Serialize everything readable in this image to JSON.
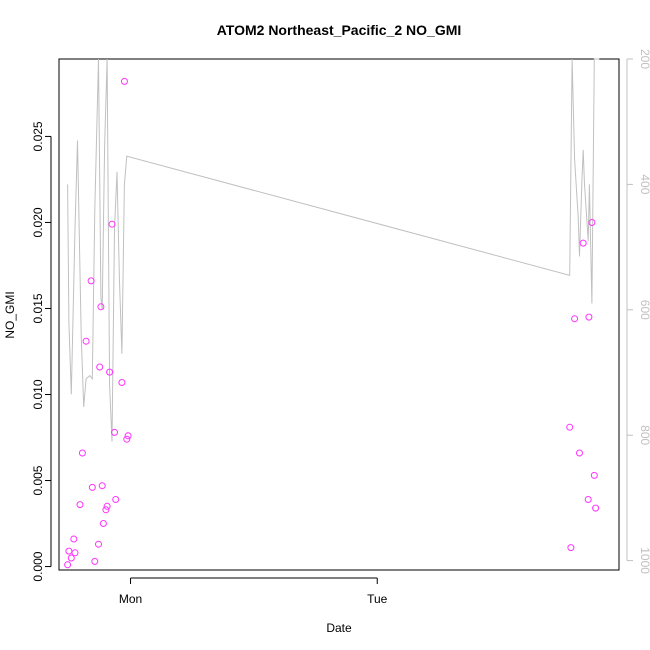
{
  "chart_data": {
    "type": "scatter",
    "title": "ATOM2 Northeast_Pacific_2 NO_GMI",
    "xlabel": "Date",
    "ylabel": "NO_GMI",
    "x_tick_labels": [
      "Mon",
      "Tue"
    ],
    "y_ticks": [
      0.0,
      0.005,
      0.01,
      0.015,
      0.02,
      0.025
    ],
    "y_tick_labels": [
      "0.000",
      "0.005",
      "0.010",
      "0.015",
      "0.020",
      "0.025"
    ],
    "ylim": [
      -0.0002,
      0.0295
    ],
    "xlim": [
      -0.29,
      1.98
    ],
    "y2_ticks": [
      200,
      400,
      600,
      800,
      1000
    ],
    "y2_tick_labels": [
      "200",
      "400",
      "600",
      "800",
      "1000"
    ],
    "y2lim": [
      1015,
      200
    ],
    "grid": false,
    "colors": {
      "points": "#ff33ff",
      "line": "#c0c0c0",
      "axis": "#000000",
      "secondary_axis": "#c0c0c0"
    },
    "series": [
      {
        "kind": "points",
        "axis": "left",
        "points": [
          [
            -0.255,
            0.0001
          ],
          [
            -0.25,
            0.0009
          ],
          [
            -0.24,
            0.0005
          ],
          [
            -0.23,
            0.0016
          ],
          [
            -0.225,
            0.0008
          ],
          [
            -0.205,
            0.0036
          ],
          [
            -0.195,
            0.0066
          ],
          [
            -0.18,
            0.0131
          ],
          [
            -0.16,
            0.0166
          ],
          [
            -0.155,
            0.0046
          ],
          [
            -0.145,
            0.0003
          ],
          [
            -0.13,
            0.0013
          ],
          [
            -0.125,
            0.0116
          ],
          [
            -0.12,
            0.0151
          ],
          [
            -0.115,
            0.0047
          ],
          [
            -0.11,
            0.0025
          ],
          [
            -0.1,
            0.0033
          ],
          [
            -0.095,
            0.0035
          ],
          [
            -0.085,
            0.0113
          ],
          [
            -0.075,
            0.0199
          ],
          [
            -0.065,
            0.0078
          ],
          [
            -0.06,
            0.0039
          ],
          [
            -0.035,
            0.0107
          ],
          [
            -0.025,
            0.0282
          ],
          [
            -0.015,
            0.0074
          ],
          [
            -0.01,
            0.0076
          ],
          [
            1.78,
            0.0081
          ],
          [
            1.785,
            0.0011
          ],
          [
            1.8,
            0.0144
          ],
          [
            1.82,
            0.0066
          ],
          [
            1.835,
            0.0188
          ],
          [
            1.855,
            0.0039
          ],
          [
            1.858,
            0.0145
          ],
          [
            1.87,
            0.02
          ],
          [
            1.88,
            0.0053
          ],
          [
            1.885,
            0.0034
          ]
        ]
      },
      {
        "kind": "line",
        "axis": "right",
        "points": [
          [
            -0.255,
            400
          ],
          [
            -0.25,
            620
          ],
          [
            -0.24,
            735
          ],
          [
            -0.225,
            470
          ],
          [
            -0.215,
            330
          ],
          [
            -0.2,
            640
          ],
          [
            -0.19,
            755
          ],
          [
            -0.18,
            710
          ],
          [
            -0.165,
            705
          ],
          [
            -0.155,
            710
          ],
          [
            -0.145,
            440
          ],
          [
            -0.13,
            200
          ],
          [
            -0.12,
            580
          ],
          [
            -0.115,
            600
          ],
          [
            -0.105,
            340
          ],
          [
            -0.095,
            200
          ],
          [
            -0.085,
            720
          ],
          [
            -0.075,
            810
          ],
          [
            -0.065,
            470
          ],
          [
            -0.055,
            380
          ],
          [
            -0.045,
            550
          ],
          [
            -0.035,
            670
          ],
          [
            -0.025,
            400
          ],
          [
            -0.015,
            355
          ],
          [
            1.78,
            545
          ],
          [
            1.79,
            200
          ],
          [
            1.8,
            360
          ],
          [
            1.815,
            455
          ],
          [
            1.82,
            515
          ],
          [
            1.83,
            390
          ],
          [
            1.835,
            345
          ],
          [
            1.84,
            400
          ],
          [
            1.855,
            490
          ],
          [
            1.86,
            400
          ],
          [
            1.87,
            590
          ],
          [
            1.88,
            200
          ],
          [
            1.885,
            200
          ],
          [
            1.9,
            200
          ]
        ]
      }
    ]
  }
}
